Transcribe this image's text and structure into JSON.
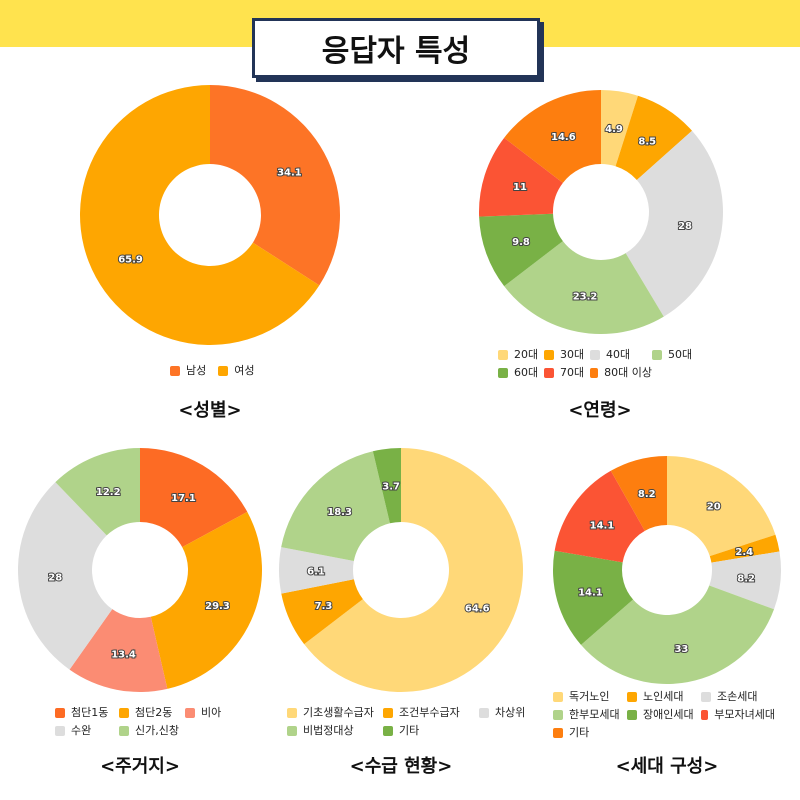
{
  "header": {
    "title": "응답자 특성"
  },
  "colors": {
    "background": "#ffffff",
    "band": "#ffe34e",
    "title_border": "#223457"
  },
  "chart_data": [
    {
      "type": "pie",
      "caption": "<성별>",
      "donut": true,
      "categories": [
        "남성",
        "여성"
      ],
      "values": [
        34.1,
        65.9
      ],
      "colors": [
        "#fd7426",
        "#fea601"
      ]
    },
    {
      "type": "pie",
      "caption": "<연령>",
      "donut": true,
      "categories": [
        "20대",
        "30대",
        "40대",
        "50대",
        "60대",
        "70대",
        "80대 이상"
      ],
      "values": [
        4.9,
        8.5,
        28,
        23.2,
        9.8,
        11,
        14.6
      ],
      "colors": [
        "#ffd878",
        "#fea601",
        "#dddddd",
        "#b0d38a",
        "#79b146",
        "#fb5434",
        "#fd7e0f"
      ]
    },
    {
      "type": "pie",
      "caption": "<주거지>",
      "donut": true,
      "categories": [
        "첨단1동",
        "첨단2동",
        "비아",
        "수완",
        "신가,신창"
      ],
      "values": [
        17.1,
        29.3,
        13.4,
        28,
        12.2
      ],
      "colors": [
        "#fd6b24",
        "#fea601",
        "#fb8c73",
        "#dddddd",
        "#b0d38a"
      ]
    },
    {
      "type": "pie",
      "caption": "<수급 현황>",
      "donut": true,
      "categories": [
        "기초생활수급자",
        "조건부수급자",
        "차상위",
        "비법정대상",
        "기타"
      ],
      "values": [
        64.6,
        7.3,
        6.1,
        18.3,
        3.7
      ],
      "colors": [
        "#ffd878",
        "#fea601",
        "#dddddd",
        "#b0d38a",
        "#79b146"
      ]
    },
    {
      "type": "pie",
      "caption": "<세대 구성>",
      "donut": true,
      "categories": [
        "독거노인",
        "노인세대",
        "조손세대",
        "한부모세대",
        "장애인세대",
        "부모자녀세대",
        "기타"
      ],
      "values": [
        20,
        2.4,
        8.2,
        33,
        14.1,
        14.1,
        8.2
      ],
      "colors": [
        "#ffd878",
        "#fea601",
        "#dddddd",
        "#b0d38a",
        "#79b146",
        "#fb5434",
        "#fd7e0f"
      ]
    }
  ]
}
